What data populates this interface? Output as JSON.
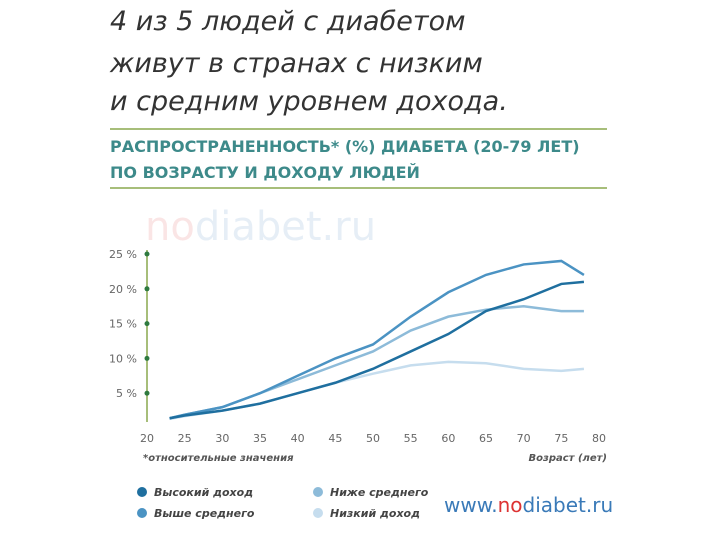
{
  "headline": [
    "4 из 5 людей с диабетом",
    "живут в странах с низким",
    "и средним уровнем дохода."
  ],
  "heading": [
    "РАСПРОСТРАНЕННОСТЬ* (%) ДИАБЕТА (20-79 ЛЕТ)",
    "ПО ВОЗРАСТУ И ДОХОДУ ЛЮДЕЙ"
  ],
  "watermark": [
    "no",
    "diabet.ru"
  ],
  "logo": [
    "www.",
    "no",
    "diabet.ru"
  ],
  "chart_data": {
    "type": "line",
    "footnote": "*относительные значения",
    "x_label": "Возраст (лет)",
    "x": [
      23,
      25,
      30,
      35,
      40,
      45,
      50,
      55,
      60,
      65,
      70,
      75,
      78
    ],
    "xlim": [
      20,
      80
    ],
    "xticks": [
      20,
      25,
      30,
      35,
      40,
      45,
      50,
      55,
      60,
      65,
      70,
      75,
      80
    ],
    "ylim": [
      0,
      25
    ],
    "yticks": [
      {
        "value": 5,
        "label": "5 %"
      },
      {
        "value": 10,
        "label": "10 %"
      },
      {
        "value": 15,
        "label": "15 %"
      },
      {
        "value": 20,
        "label": "20 %"
      },
      {
        "value": 25,
        "label": "25 %"
      }
    ],
    "series": [
      {
        "name": "Высокий доход",
        "color": "#1f6f9f",
        "values": [
          1.4,
          1.8,
          2.5,
          3.5,
          5,
          6.5,
          8.5,
          11,
          13.5,
          16.8,
          18.5,
          20.7,
          21
        ]
      },
      {
        "name": "Выше среднего",
        "color": "#4b93c3",
        "values": [
          1.4,
          1.9,
          3,
          5,
          7.5,
          10,
          12,
          16,
          19.5,
          22,
          23.5,
          24,
          22
        ]
      },
      {
        "name": "Ниже среднего",
        "color": "#8dbbd9",
        "values": [
          1.4,
          1.9,
          3,
          5,
          7,
          9,
          11,
          14,
          16,
          17,
          17.5,
          16.8,
          16.8
        ]
      },
      {
        "name": "Низкий доход",
        "color": "#c6ddee",
        "values": [
          1.3,
          1.7,
          2.5,
          3.5,
          5,
          6.5,
          7.8,
          9,
          9.5,
          9.3,
          8.5,
          8.2,
          8.5
        ]
      }
    ]
  }
}
